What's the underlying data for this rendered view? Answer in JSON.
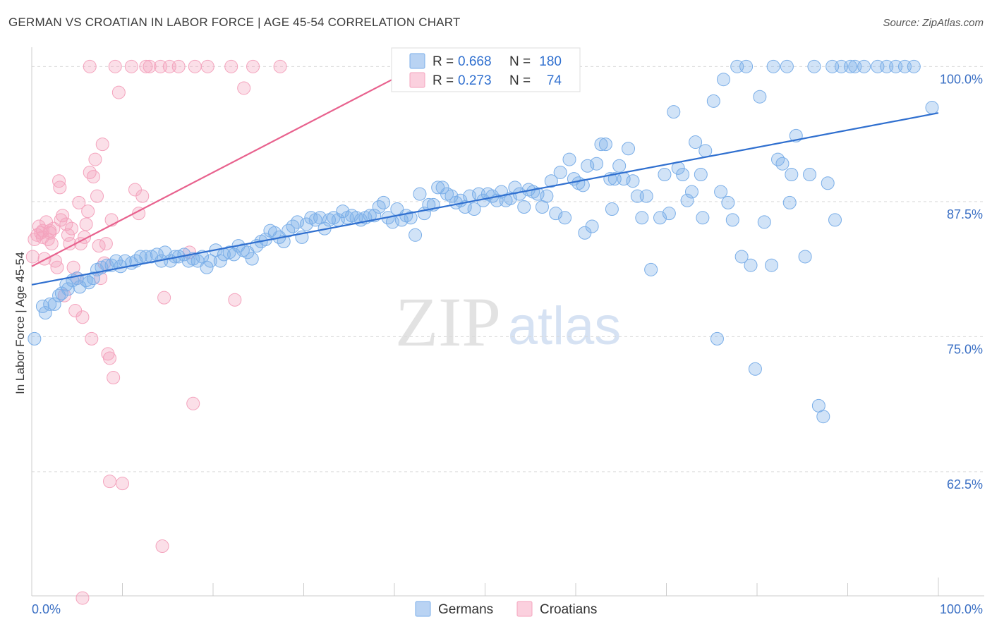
{
  "title": "GERMAN VS CROATIAN IN LABOR FORCE | AGE 45-54 CORRELATION CHART",
  "source": "Source: ZipAtlas.com",
  "watermark": {
    "zip": "ZIP",
    "atlas": "atlas"
  },
  "legend_top": [
    {
      "r_label": "R = ",
      "r_value": "0.668",
      "n_label": "N = ",
      "n_value": "180",
      "color": "#7aaee8"
    },
    {
      "r_label": "R = ",
      "r_value": "0.273",
      "n_label": "N = ",
      "n_value": "74",
      "color": "#f4a3bd"
    }
  ],
  "legend_bottom": [
    {
      "label": "Germans",
      "color": "#7aaee8"
    },
    {
      "label": "Croatians",
      "color": "#f4a3bd"
    }
  ],
  "chart_data": {
    "type": "scatter",
    "ylabel": "In Labor Force | Age 45-54",
    "xlabel": "",
    "xlim": [
      0,
      100
    ],
    "ylim": [
      51,
      101
    ],
    "x_tick_labels": [
      "0.0%",
      "100.0%"
    ],
    "y_ticks": [
      62.5,
      75.0,
      87.5,
      100.0
    ],
    "y_tick_labels": [
      "62.5%",
      "75.0%",
      "87.5%",
      "100.0%"
    ],
    "grid": "horizontal dashed",
    "series": [
      {
        "name": "Germans",
        "color": "#7aaee8",
        "line_color": "#2f6fcf",
        "trend": [
          [
            0,
            79.8
          ],
          [
            100,
            95.7
          ]
        ],
        "points": [
          [
            0.3,
            74.8
          ],
          [
            1.2,
            77.8
          ],
          [
            1.5,
            77.2
          ],
          [
            2.0,
            78.0
          ],
          [
            2.5,
            78.0
          ],
          [
            3.0,
            78.8
          ],
          [
            3.3,
            79.0
          ],
          [
            3.8,
            79.8
          ],
          [
            4.0,
            79.4
          ],
          [
            4.5,
            80.2
          ],
          [
            5.0,
            80.4
          ],
          [
            5.3,
            79.6
          ],
          [
            6.0,
            80.2
          ],
          [
            6.3,
            80.0
          ],
          [
            6.8,
            80.4
          ],
          [
            7.2,
            81.2
          ],
          [
            7.7,
            81.4
          ],
          [
            8.3,
            81.6
          ],
          [
            8.8,
            81.6
          ],
          [
            9.3,
            82.0
          ],
          [
            9.8,
            81.5
          ],
          [
            10.3,
            82.0
          ],
          [
            11.0,
            81.8
          ],
          [
            11.5,
            82.0
          ],
          [
            12.0,
            82.4
          ],
          [
            12.6,
            82.4
          ],
          [
            13.2,
            82.4
          ],
          [
            13.8,
            82.6
          ],
          [
            14.3,
            82.0
          ],
          [
            14.7,
            82.8
          ],
          [
            15.3,
            82.0
          ],
          [
            15.8,
            82.4
          ],
          [
            16.2,
            82.4
          ],
          [
            16.8,
            82.6
          ],
          [
            17.3,
            82.0
          ],
          [
            17.8,
            82.2
          ],
          [
            18.3,
            82.0
          ],
          [
            18.8,
            82.4
          ],
          [
            19.3,
            81.4
          ],
          [
            19.7,
            82.0
          ],
          [
            20.3,
            83.0
          ],
          [
            20.8,
            82.0
          ],
          [
            21.2,
            82.6
          ],
          [
            21.8,
            82.8
          ],
          [
            22.3,
            82.6
          ],
          [
            22.8,
            83.4
          ],
          [
            23.3,
            83.0
          ],
          [
            23.8,
            82.8
          ],
          [
            24.3,
            82.2
          ],
          [
            24.8,
            83.4
          ],
          [
            25.3,
            83.8
          ],
          [
            25.8,
            84.0
          ],
          [
            26.3,
            84.8
          ],
          [
            26.8,
            84.6
          ],
          [
            27.3,
            84.2
          ],
          [
            27.8,
            83.8
          ],
          [
            28.3,
            84.8
          ],
          [
            28.8,
            85.2
          ],
          [
            29.3,
            85.6
          ],
          [
            29.8,
            84.2
          ],
          [
            30.3,
            85.4
          ],
          [
            30.8,
            86.0
          ],
          [
            31.3,
            85.8
          ],
          [
            31.8,
            86.0
          ],
          [
            32.3,
            85.0
          ],
          [
            32.8,
            85.8
          ],
          [
            33.3,
            86.0
          ],
          [
            33.8,
            85.8
          ],
          [
            34.3,
            86.6
          ],
          [
            34.8,
            86.0
          ],
          [
            35.3,
            86.2
          ],
          [
            35.8,
            86.0
          ],
          [
            36.3,
            85.8
          ],
          [
            36.8,
            86.0
          ],
          [
            37.3,
            86.2
          ],
          [
            37.8,
            86.2
          ],
          [
            38.3,
            87.0
          ],
          [
            38.8,
            87.4
          ],
          [
            39.3,
            86.0
          ],
          [
            39.8,
            85.6
          ],
          [
            40.3,
            86.8
          ],
          [
            40.8,
            85.8
          ],
          [
            41.3,
            86.2
          ],
          [
            41.8,
            86.0
          ],
          [
            42.3,
            84.4
          ],
          [
            42.8,
            88.2
          ],
          [
            43.3,
            86.4
          ],
          [
            43.8,
            87.2
          ],
          [
            44.3,
            87.2
          ],
          [
            44.8,
            88.8
          ],
          [
            45.3,
            88.8
          ],
          [
            45.8,
            88.2
          ],
          [
            46.3,
            88.0
          ],
          [
            46.8,
            87.4
          ],
          [
            47.3,
            87.6
          ],
          [
            47.8,
            87.0
          ],
          [
            48.3,
            88.0
          ],
          [
            48.8,
            86.8
          ],
          [
            49.3,
            88.2
          ],
          [
            49.8,
            87.6
          ],
          [
            50.3,
            88.2
          ],
          [
            50.8,
            88.0
          ],
          [
            51.3,
            87.6
          ],
          [
            51.8,
            88.4
          ],
          [
            52.3,
            87.6
          ],
          [
            52.8,
            87.8
          ],
          [
            53.3,
            88.8
          ],
          [
            53.8,
            88.2
          ],
          [
            54.3,
            87.0
          ],
          [
            54.8,
            88.6
          ],
          [
            55.3,
            88.4
          ],
          [
            55.8,
            88.2
          ],
          [
            56.3,
            87.0
          ],
          [
            56.8,
            88.0
          ],
          [
            57.3,
            89.4
          ],
          [
            57.8,
            86.4
          ],
          [
            58.3,
            90.2
          ],
          [
            58.8,
            86.0
          ],
          [
            59.3,
            91.4
          ],
          [
            59.8,
            89.6
          ],
          [
            60.3,
            89.2
          ],
          [
            60.8,
            89.0
          ],
          [
            61.3,
            90.8
          ],
          [
            61.8,
            85.2
          ],
          [
            62.3,
            91.0
          ],
          [
            62.8,
            92.8
          ],
          [
            63.3,
            92.8
          ],
          [
            63.8,
            89.6
          ],
          [
            64.3,
            89.6
          ],
          [
            64.8,
            90.8
          ],
          [
            65.3,
            89.6
          ],
          [
            65.8,
            92.4
          ],
          [
            66.3,
            89.4
          ],
          [
            66.8,
            88.0
          ],
          [
            67.3,
            86.0
          ],
          [
            67.8,
            88.0
          ],
          [
            68.3,
            81.2
          ],
          [
            69.3,
            86.0
          ],
          [
            69.8,
            90.0
          ],
          [
            70.3,
            86.4
          ],
          [
            70.8,
            95.8
          ],
          [
            71.3,
            90.6
          ],
          [
            71.8,
            90.0
          ],
          [
            72.3,
            87.6
          ],
          [
            72.8,
            88.4
          ],
          [
            73.2,
            93.0
          ],
          [
            73.8,
            90.0
          ],
          [
            74.3,
            92.2
          ],
          [
            75.2,
            96.8
          ],
          [
            75.6,
            74.8
          ],
          [
            76.3,
            98.8
          ],
          [
            76.8,
            87.4
          ],
          [
            77.3,
            85.8
          ],
          [
            77.8,
            100.0
          ],
          [
            78.3,
            82.4
          ],
          [
            78.8,
            100.0
          ],
          [
            79.3,
            81.6
          ],
          [
            79.8,
            72.0
          ],
          [
            80.3,
            97.2
          ],
          [
            80.8,
            85.6
          ],
          [
            81.8,
            100.0
          ],
          [
            82.3,
            91.4
          ],
          [
            82.8,
            91.0
          ],
          [
            83.3,
            100.0
          ],
          [
            83.8,
            90.0
          ],
          [
            84.3,
            93.6
          ],
          [
            85.3,
            82.4
          ],
          [
            85.8,
            90.0
          ],
          [
            86.3,
            100.0
          ],
          [
            86.8,
            68.6
          ],
          [
            87.3,
            67.6
          ],
          [
            88.3,
            100.0
          ],
          [
            88.6,
            85.8
          ],
          [
            89.3,
            100.0
          ],
          [
            90.3,
            100.0
          ],
          [
            90.8,
            100.0
          ],
          [
            91.8,
            100.0
          ],
          [
            93.3,
            100.0
          ],
          [
            94.3,
            100.0
          ],
          [
            95.3,
            100.0
          ],
          [
            96.3,
            100.0
          ],
          [
            97.3,
            100.0
          ],
          [
            99.3,
            96.2
          ],
          [
            81.6,
            81.6
          ],
          [
            83.6,
            87.4
          ],
          [
            87.8,
            89.2
          ],
          [
            76.0,
            88.4
          ],
          [
            74.0,
            86.0
          ],
          [
            64.0,
            86.8
          ],
          [
            61.0,
            84.6
          ]
        ]
      },
      {
        "name": "Croatians",
        "color": "#f4a3bd",
        "line_color": "#e8628e",
        "trend": [
          [
            0,
            81.5
          ],
          [
            40,
            98.9
          ]
        ],
        "points": [
          [
            0.1,
            82.4
          ],
          [
            0.3,
            84.0
          ],
          [
            0.6,
            84.4
          ],
          [
            0.8,
            85.2
          ],
          [
            1.0,
            84.6
          ],
          [
            1.2,
            84.2
          ],
          [
            1.4,
            82.2
          ],
          [
            1.6,
            85.6
          ],
          [
            1.8,
            84.0
          ],
          [
            2.0,
            84.8
          ],
          [
            2.2,
            83.6
          ],
          [
            2.4,
            85.0
          ],
          [
            2.6,
            82.0
          ],
          [
            2.8,
            81.4
          ],
          [
            3.0,
            89.4
          ],
          [
            3.1,
            88.8
          ],
          [
            3.2,
            85.8
          ],
          [
            3.4,
            86.2
          ],
          [
            3.6,
            78.8
          ],
          [
            3.8,
            85.4
          ],
          [
            4.0,
            84.4
          ],
          [
            4.2,
            83.6
          ],
          [
            4.4,
            85.0
          ],
          [
            4.6,
            81.4
          ],
          [
            4.8,
            77.4
          ],
          [
            5.0,
            80.4
          ],
          [
            5.2,
            87.4
          ],
          [
            5.4,
            83.6
          ],
          [
            5.6,
            76.8
          ],
          [
            5.8,
            84.2
          ],
          [
            6.0,
            85.4
          ],
          [
            6.2,
            86.6
          ],
          [
            6.4,
            90.2
          ],
          [
            6.6,
            74.8
          ],
          [
            6.8,
            89.8
          ],
          [
            7.0,
            91.4
          ],
          [
            7.2,
            88.0
          ],
          [
            7.4,
            83.4
          ],
          [
            7.6,
            80.4
          ],
          [
            7.8,
            92.8
          ],
          [
            8.0,
            81.8
          ],
          [
            8.2,
            83.6
          ],
          [
            8.4,
            73.4
          ],
          [
            8.6,
            73.0
          ],
          [
            8.8,
            85.8
          ],
          [
            9.0,
            71.2
          ],
          [
            9.2,
            100.0
          ],
          [
            9.6,
            97.6
          ],
          [
            10.0,
            61.4
          ],
          [
            11.0,
            100.0
          ],
          [
            11.4,
            88.6
          ],
          [
            11.8,
            86.4
          ],
          [
            12.2,
            88.0
          ],
          [
            12.6,
            100.0
          ],
          [
            13.0,
            100.0
          ],
          [
            14.2,
            100.0
          ],
          [
            14.6,
            78.6
          ],
          [
            15.2,
            100.0
          ],
          [
            16.2,
            100.0
          ],
          [
            17.4,
            82.8
          ],
          [
            17.8,
            68.8
          ],
          [
            18.0,
            100.0
          ],
          [
            19.4,
            100.0
          ],
          [
            22.0,
            100.0
          ],
          [
            22.4,
            78.4
          ],
          [
            23.4,
            98.0
          ],
          [
            24.4,
            100.0
          ],
          [
            27.4,
            100.0
          ],
          [
            8.6,
            61.6
          ],
          [
            14.4,
            55.6
          ],
          [
            5.6,
            50.8
          ],
          [
            6.4,
            100.0
          ],
          [
            1.2,
            84.8
          ],
          [
            2.0,
            84.6
          ]
        ]
      }
    ]
  }
}
